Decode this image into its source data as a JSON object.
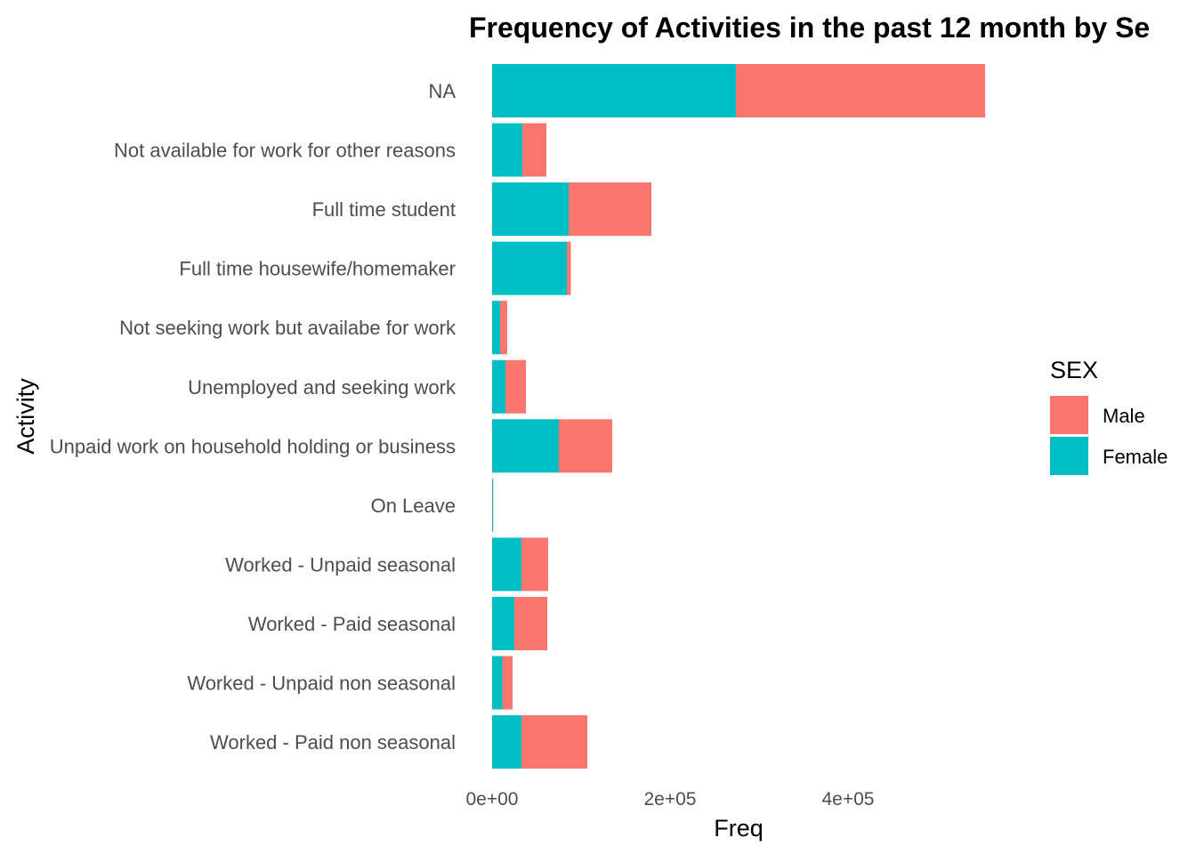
{
  "chart_data": {
    "type": "bar",
    "orientation": "horizontal",
    "stacked": true,
    "title": "Frequency of Activities in the past 12 month by Se",
    "xlabel": "Freq",
    "ylabel": "Activity",
    "xlim": [
      0,
      560000
    ],
    "x_ticks": [
      0,
      200000,
      400000
    ],
    "x_tick_labels": [
      "0e+00",
      "2e+05",
      "4e+05"
    ],
    "grid": false,
    "legend": {
      "title": "SEX",
      "position": "right"
    },
    "categories": [
      "NA",
      "Not available for work for other reasons",
      "Full time student",
      "Full time housewife/homemaker",
      "Not seeking work but availabe for work",
      "Unemployed and seeking work",
      "Unpaid work on household holding or business",
      "On Leave",
      "Worked - Unpaid seasonal",
      "Worked - Paid seasonal",
      "Worked - Unpaid non seasonal",
      "Worked - Paid non seasonal"
    ],
    "series": [
      {
        "name": "Female",
        "color": "#00BFC4",
        "values": [
          274000,
          34000,
          86000,
          84000,
          9000,
          15000,
          75000,
          1000,
          33000,
          25000,
          11500,
          33000
        ]
      },
      {
        "name": "Male",
        "color": "#F8766D",
        "values": [
          280000,
          27000,
          93000,
          4500,
          8000,
          23000,
          60000,
          300,
          30000,
          37000,
          11500,
          74000
        ]
      }
    ]
  }
}
